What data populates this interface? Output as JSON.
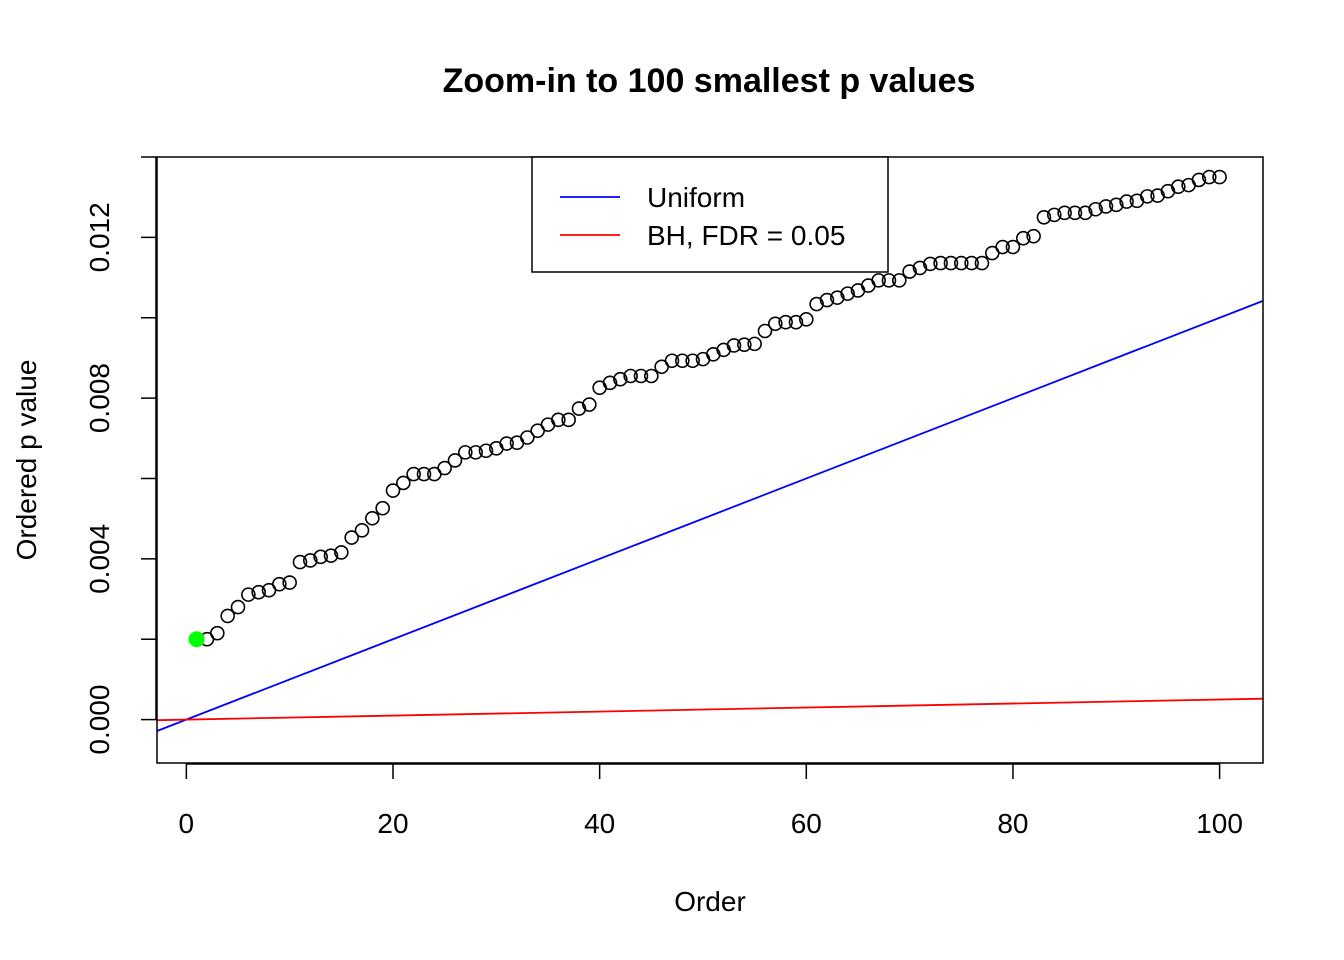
{
  "chart_data": {
    "type": "scatter",
    "title": "Zoom-in to 100 smallest p values",
    "xlabel": "Order",
    "ylabel": "Ordered p value",
    "xlim": [
      -2.84,
      104.2
    ],
    "ylim": [
      -0.00108,
      0.014
    ],
    "xticks": [
      0,
      20,
      40,
      60,
      80,
      100
    ],
    "xtick_labels": [
      "0",
      "20",
      "40",
      "60",
      "80",
      "100"
    ],
    "yticks": [
      0.0,
      0.002,
      0.004,
      0.006,
      0.008,
      0.01,
      0.012,
      0.014
    ],
    "ytick_labels": [
      "0.000",
      "",
      "0.004",
      "",
      "0.008",
      "",
      "0.012",
      ""
    ],
    "grid": false,
    "series": [
      {
        "name": "",
        "kind": "points",
        "color": "#000000",
        "x": [
          1,
          2,
          3,
          4,
          5,
          6,
          7,
          8,
          9,
          10,
          11,
          12,
          13,
          14,
          15,
          16,
          17,
          18,
          19,
          20,
          21,
          22,
          23,
          24,
          25,
          26,
          27,
          28,
          29,
          30,
          31,
          32,
          33,
          34,
          35,
          36,
          37,
          38,
          39,
          40,
          41,
          42,
          43,
          44,
          45,
          46,
          47,
          48,
          49,
          50,
          51,
          52,
          53,
          54,
          55,
          56,
          57,
          58,
          59,
          60,
          61,
          62,
          63,
          64,
          65,
          66,
          67,
          68,
          69,
          70,
          71,
          72,
          73,
          74,
          75,
          76,
          77,
          78,
          79,
          80,
          81,
          82,
          83,
          84,
          85,
          86,
          87,
          88,
          89,
          90,
          91,
          92,
          93,
          94,
          95,
          96,
          97,
          98,
          99,
          100
        ],
        "y": [
          0.002,
          0.002,
          0.00215,
          0.00258,
          0.0028,
          0.00311,
          0.00317,
          0.00322,
          0.00337,
          0.00341,
          0.00392,
          0.00396,
          0.00405,
          0.00408,
          0.00416,
          0.00453,
          0.00471,
          0.00501,
          0.00526,
          0.0057,
          0.00589,
          0.00611,
          0.00611,
          0.00611,
          0.00626,
          0.00645,
          0.00665,
          0.00665,
          0.00669,
          0.00675,
          0.00687,
          0.00689,
          0.00702,
          0.00719,
          0.00734,
          0.00746,
          0.00746,
          0.00774,
          0.00784,
          0.00826,
          0.00838,
          0.00847,
          0.00855,
          0.00855,
          0.00855,
          0.00878,
          0.00893,
          0.00893,
          0.00893,
          0.00897,
          0.00909,
          0.0092,
          0.00931,
          0.00933,
          0.00935,
          0.00967,
          0.00985,
          0.00989,
          0.00989,
          0.00996,
          0.01034,
          0.01044,
          0.0105,
          0.0106,
          0.01068,
          0.0108,
          0.01093,
          0.01093,
          0.01093,
          0.01115,
          0.01124,
          0.01134,
          0.01136,
          0.01136,
          0.01136,
          0.01136,
          0.01136,
          0.01161,
          0.01176,
          0.01176,
          0.01198,
          0.01203,
          0.0125,
          0.01256,
          0.01261,
          0.01261,
          0.01261,
          0.0127,
          0.01277,
          0.01281,
          0.01289,
          0.01291,
          0.01302,
          0.01304,
          0.01315,
          0.01326,
          0.0133,
          0.01343,
          0.0135,
          0.0135
        ]
      },
      {
        "name": "Uniform",
        "kind": "line",
        "color": "#0000ff",
        "intercept": 0,
        "slope": 0.0001
      },
      {
        "name": "BH, FDR = 0.05",
        "kind": "line",
        "color": "#ff0000",
        "intercept": 0,
        "slope": 5e-06
      }
    ],
    "highlight": {
      "x": 1,
      "y": 0.002,
      "color": "#00ff00"
    },
    "legend": {
      "placement": "top-center",
      "entries": [
        {
          "label": "Uniform",
          "color": "#0000ff"
        },
        {
          "label": "BH, FDR = 0.05",
          "color": "#ff0000"
        }
      ]
    }
  }
}
